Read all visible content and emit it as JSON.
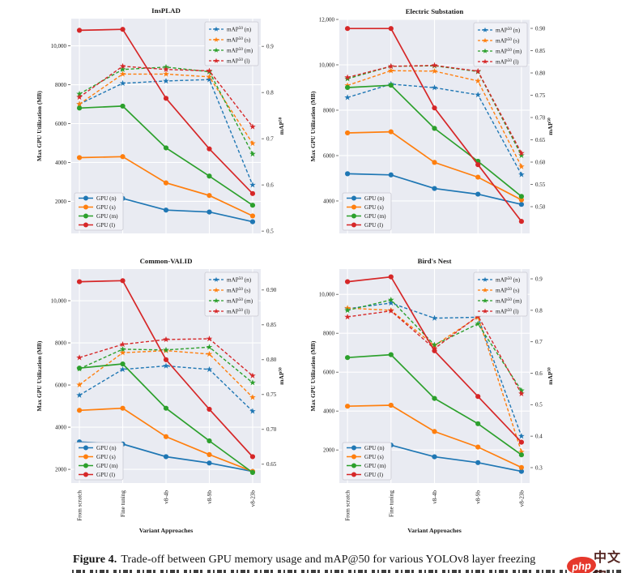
{
  "figure": {
    "caption_label": "Figure 4.",
    "caption_text": "Trade-off between GPU memory usage and mAP@50 for various YOLOv8 layer freezing",
    "watermark": {
      "logo_text": "php",
      "site_text": "中文网",
      "logo_color": "#e6382c"
    }
  },
  "colors": {
    "blue": "#1f77b4",
    "orange": "#ff7f0e",
    "green": "#2ca02c",
    "red": "#d62728",
    "plot_bg": "#e9ebf2",
    "grid": "#ffffff",
    "text": "#1a1a1a",
    "tick": "#555555",
    "legend_bg": "#f1f2f7",
    "legend_border": "#c9c9d2"
  },
  "chart_data": [
    {
      "title": "InsPLAD",
      "type": "line",
      "dual_axis": true,
      "grid": true,
      "categories": [
        "From scratch",
        "Fine tuning",
        "v8-4b",
        "v8-9b",
        "v8-23b"
      ],
      "x_label": "Variant Approaches",
      "left_axis": {
        "label": "Max GPU Utilization (MB)",
        "ticks": [
          "2000",
          "4000",
          "6000",
          "8000",
          "10,000"
        ],
        "tick_values": [
          2000,
          4000,
          6000,
          8000,
          10000
        ],
        "range": [
          350,
          11400
        ]
      },
      "right_axis": {
        "label": "mAP50",
        "label_base": "mAP",
        "label_sup": "50",
        "ticks": [
          "0.5",
          "0.6",
          "0.7",
          "0.8",
          "0.9"
        ],
        "tick_values": [
          0.5,
          0.6,
          0.7,
          0.8,
          0.9
        ],
        "range": [
          0.495,
          0.96
        ]
      },
      "series": [
        {
          "name": "GPU (n)",
          "axis": "left",
          "style": "solid",
          "color": "blue",
          "values": [
            2150,
            2150,
            1550,
            1450,
            950
          ]
        },
        {
          "name": "GPU (s)",
          "axis": "left",
          "style": "solid",
          "color": "orange",
          "values": [
            4250,
            4300,
            2950,
            2300,
            1250
          ]
        },
        {
          "name": "GPU (m)",
          "axis": "left",
          "style": "solid",
          "color": "green",
          "values": [
            6800,
            6900,
            4750,
            3300,
            1800
          ]
        },
        {
          "name": "GPU (l)",
          "axis": "left",
          "style": "solid",
          "color": "red",
          "values": [
            10800,
            10850,
            7300,
            4700,
            2400
          ]
        },
        {
          "name": "mAP50 (n)",
          "label_base": "mAP",
          "label_sup": "50",
          "label_rest": " (n)",
          "axis": "right",
          "style": "dashed",
          "color": "blue",
          "values": [
            0.775,
            0.82,
            0.825,
            0.828,
            0.6
          ]
        },
        {
          "name": "mAP50 (s)",
          "label_base": "mAP",
          "label_sup": "50",
          "label_rest": " (s)",
          "axis": "right",
          "style": "dashed",
          "color": "orange",
          "values": [
            0.775,
            0.84,
            0.84,
            0.834,
            0.69
          ]
        },
        {
          "name": "mAP50 (m)",
          "label_base": "mAP",
          "label_sup": "50",
          "label_rest": " (m)",
          "axis": "right",
          "style": "dashed",
          "color": "green",
          "values": [
            0.797,
            0.85,
            0.855,
            0.845,
            0.667
          ]
        },
        {
          "name": "mAP50 (l)",
          "label_base": "mAP",
          "label_sup": "50",
          "label_rest": " (l)",
          "axis": "right",
          "style": "dashed",
          "color": "red",
          "values": [
            0.79,
            0.857,
            0.85,
            0.847,
            0.726
          ]
        }
      ]
    },
    {
      "title": "Electric Substation",
      "type": "line",
      "dual_axis": true,
      "grid": true,
      "categories": [
        "From scratch",
        "Fine tuning",
        "v8-4b",
        "v8-9b",
        "v8-23b"
      ],
      "x_label": "Variant Approaches",
      "left_axis": {
        "label": "Max GPU Utilization (MB)",
        "ticks": [
          "4000",
          "6000",
          "8000",
          "10,000",
          "12,000"
        ],
        "tick_values": [
          4000,
          6000,
          8000,
          10000,
          12000
        ],
        "range": [
          2570,
          12000
        ]
      },
      "right_axis": {
        "label": "mAP50",
        "label_base": "mAP",
        "label_sup": "50",
        "ticks": [
          "0.50",
          "0.55",
          "0.60",
          "0.65",
          "0.70",
          "0.75",
          "0.80",
          "0.85",
          "0.90"
        ],
        "tick_values": [
          0.5,
          0.55,
          0.6,
          0.65,
          0.7,
          0.75,
          0.8,
          0.85,
          0.9
        ],
        "range": [
          0.44,
          0.92
        ]
      },
      "series": [
        {
          "name": "GPU (n)",
          "axis": "left",
          "style": "solid",
          "color": "blue",
          "values": [
            5200,
            5150,
            4550,
            4300,
            3850
          ]
        },
        {
          "name": "GPU (s)",
          "axis": "left",
          "style": "solid",
          "color": "orange",
          "values": [
            7000,
            7050,
            5700,
            5050,
            4050
          ]
        },
        {
          "name": "GPU (m)",
          "axis": "left",
          "style": "solid",
          "color": "green",
          "values": [
            9000,
            9100,
            7200,
            5750,
            4200
          ]
        },
        {
          "name": "GPU (l)",
          "axis": "left",
          "style": "solid",
          "color": "red",
          "values": [
            11600,
            11600,
            8100,
            5600,
            3100
          ]
        },
        {
          "name": "mAP50 (n)",
          "label_base": "mAP",
          "label_sup": "50",
          "label_rest": " (n)",
          "axis": "right",
          "style": "dashed",
          "color": "blue",
          "values": [
            0.745,
            0.775,
            0.767,
            0.751,
            0.572
          ]
        },
        {
          "name": "mAP50 (s)",
          "label_base": "mAP",
          "label_sup": "50",
          "label_rest": " (s)",
          "axis": "right",
          "style": "dashed",
          "color": "orange",
          "values": [
            0.772,
            0.805,
            0.804,
            0.782,
            0.59
          ]
        },
        {
          "name": "mAP50 (m)",
          "label_base": "mAP",
          "label_sup": "50",
          "label_rest": " (m)",
          "axis": "right",
          "style": "dashed",
          "color": "green",
          "values": [
            0.787,
            0.815,
            0.816,
            0.803,
            0.615
          ]
        },
        {
          "name": "mAP50 (l)",
          "label_base": "mAP",
          "label_sup": "50",
          "label_rest": " (l)",
          "axis": "right",
          "style": "dashed",
          "color": "red",
          "values": [
            0.79,
            0.815,
            0.817,
            0.804,
            0.62
          ]
        }
      ]
    },
    {
      "title": "Common-VALID",
      "type": "line",
      "dual_axis": true,
      "grid": true,
      "categories": [
        "From scratch",
        "Fine tuning",
        "v8-4b",
        "v8-9b",
        "v8-23b"
      ],
      "x_label": "Variant Approaches",
      "left_axis": {
        "label": "Max GPU Utilization (MB)",
        "ticks": [
          "2000",
          "4000",
          "6000",
          "8000",
          "10,000"
        ],
        "tick_values": [
          2000,
          4000,
          6000,
          8000,
          10000
        ],
        "range": [
          1350,
          11500
        ]
      },
      "right_axis": {
        "label": "mAP50",
        "label_base": "mAP",
        "label_sup": "50",
        "ticks": [
          "0.65",
          "0.70",
          "0.75",
          "0.80",
          "0.85",
          "0.90"
        ],
        "tick_values": [
          0.65,
          0.7,
          0.75,
          0.8,
          0.85,
          0.9
        ],
        "range": [
          0.623,
          0.93
        ]
      },
      "series": [
        {
          "name": "GPU (n)",
          "axis": "left",
          "style": "solid",
          "color": "blue",
          "values": [
            3300,
            3200,
            2600,
            2300,
            1900
          ]
        },
        {
          "name": "GPU (s)",
          "axis": "left",
          "style": "solid",
          "color": "orange",
          "values": [
            4800,
            4900,
            3550,
            2700,
            1900
          ]
        },
        {
          "name": "GPU (m)",
          "axis": "left",
          "style": "solid",
          "color": "green",
          "values": [
            6800,
            7000,
            4900,
            3350,
            1850
          ]
        },
        {
          "name": "GPU (l)",
          "axis": "left",
          "style": "solid",
          "color": "red",
          "values": [
            10900,
            10950,
            7200,
            4850,
            2600
          ]
        },
        {
          "name": "mAP50 (n)",
          "label_base": "mAP",
          "label_sup": "50",
          "label_rest": " (n)",
          "axis": "right",
          "style": "dashed",
          "color": "blue",
          "values": [
            0.749,
            0.786,
            0.791,
            0.786,
            0.726
          ]
        },
        {
          "name": "mAP50 (s)",
          "label_base": "mAP",
          "label_sup": "50",
          "label_rest": " (s)",
          "axis": "right",
          "style": "dashed",
          "color": "orange",
          "values": [
            0.764,
            0.81,
            0.813,
            0.808,
            0.746
          ]
        },
        {
          "name": "mAP50 (m)",
          "label_base": "mAP",
          "label_sup": "50",
          "label_rest": " (m)",
          "axis": "right",
          "style": "dashed",
          "color": "green",
          "values": [
            0.787,
            0.815,
            0.814,
            0.818,
            0.767
          ]
        },
        {
          "name": "mAP50 (l)",
          "label_base": "mAP",
          "label_sup": "50",
          "label_rest": " (l)",
          "axis": "right",
          "style": "dashed",
          "color": "red",
          "values": [
            0.803,
            0.822,
            0.829,
            0.83,
            0.777
          ]
        }
      ]
    },
    {
      "title": "Bird's Nest",
      "type": "line",
      "dual_axis": true,
      "grid": true,
      "categories": [
        "From scratch",
        "Fine tuning",
        "v8-4b",
        "v8-9b",
        "v8-23b"
      ],
      "x_label": "Variant Approaches",
      "left_axis": {
        "label": "Max GPU Utilization (MB)",
        "ticks": [
          "2000",
          "4000",
          "6000",
          "8000",
          "10,000"
        ],
        "tick_values": [
          2000,
          4000,
          6000,
          8000,
          10000
        ],
        "range": [
          300,
          11300
        ]
      },
      "right_axis": {
        "label": "mAP50",
        "label_base": "mAP",
        "label_sup": "50",
        "ticks": [
          "0.3",
          "0.4",
          "0.5",
          "0.6",
          "0.7",
          "0.8",
          "0.9"
        ],
        "tick_values": [
          0.3,
          0.4,
          0.5,
          0.6,
          0.7,
          0.8,
          0.9
        ],
        "range": [
          0.251,
          0.931
        ]
      },
      "series": [
        {
          "name": "GPU (n)",
          "axis": "left",
          "style": "solid",
          "color": "blue",
          "values": [
            2250,
            2250,
            1650,
            1350,
            900
          ]
        },
        {
          "name": "GPU (s)",
          "axis": "left",
          "style": "solid",
          "color": "orange",
          "values": [
            4250,
            4300,
            2950,
            2150,
            1100
          ]
        },
        {
          "name": "GPU (m)",
          "axis": "left",
          "style": "solid",
          "color": "green",
          "values": [
            6750,
            6900,
            4650,
            3350,
            1750
          ]
        },
        {
          "name": "GPU (l)",
          "axis": "left",
          "style": "solid",
          "color": "red",
          "values": [
            10650,
            10900,
            7100,
            4750,
            2400
          ]
        },
        {
          "name": "mAP50 (n)",
          "label_base": "mAP",
          "label_sup": "50",
          "label_rest": " (n)",
          "axis": "right",
          "style": "dashed",
          "color": "blue",
          "values": [
            0.805,
            0.823,
            0.775,
            0.778,
            0.4
          ]
        },
        {
          "name": "mAP50 (s)",
          "label_base": "mAP",
          "label_sup": "50",
          "label_rest": " (s)",
          "axis": "right",
          "style": "dashed",
          "color": "orange",
          "values": [
            0.807,
            0.8,
            0.688,
            0.779,
            0.35
          ]
        },
        {
          "name": "mAP50 (m)",
          "label_base": "mAP",
          "label_sup": "50",
          "label_rest": " (m)",
          "axis": "right",
          "style": "dashed",
          "color": "green",
          "values": [
            0.8,
            0.833,
            0.69,
            0.757,
            0.545
          ]
        },
        {
          "name": "mAP50 (l)",
          "label_base": "mAP",
          "label_sup": "50",
          "label_rest": " (l)",
          "axis": "right",
          "style": "dashed",
          "color": "red",
          "values": [
            0.779,
            0.798,
            0.678,
            0.782,
            0.535
          ]
        }
      ]
    }
  ]
}
